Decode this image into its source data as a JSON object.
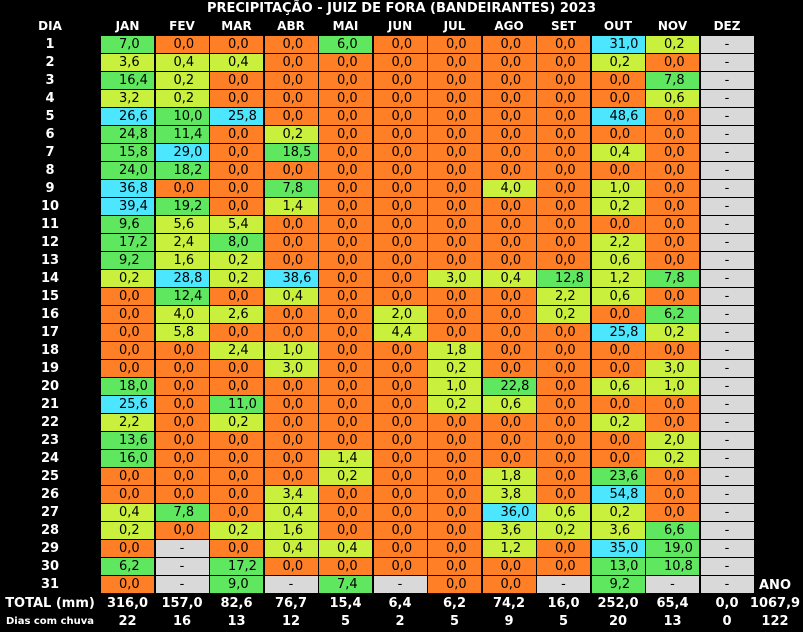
{
  "title": "PRECIPITAÇÃO - JUIZ DE FORA (BANDEIRANTES) 2023",
  "dia_label": "DIA",
  "months": [
    "JAN",
    "FEV",
    "MAR",
    "ABR",
    "MAI",
    "JUN",
    "JUL",
    "AGO",
    "SET",
    "OUT",
    "NOV",
    "DEZ"
  ],
  "colors": {
    "zero": "#ff7f27",
    "light": "#c8f03c",
    "moderate": "#5fe85f",
    "heavy": "#4de6ff",
    "nodata": "#d9d9d9"
  },
  "days": [
    [
      "7,0",
      "0,0",
      "0,0",
      "0,0",
      "6,0",
      "0,0",
      "0,0",
      "0,0",
      "0,0",
      "31,0",
      "0,2",
      "-"
    ],
    [
      "3,6",
      "0,4",
      "0,4",
      "0,0",
      "0,0",
      "0,0",
      "0,0",
      "0,0",
      "0,0",
      "0,2",
      "0,0",
      "-"
    ],
    [
      "16,4",
      "0,2",
      "0,0",
      "0,0",
      "0,0",
      "0,0",
      "0,0",
      "0,0",
      "0,0",
      "0,0",
      "7,8",
      "-"
    ],
    [
      "3,2",
      "0,2",
      "0,0",
      "0,0",
      "0,0",
      "0,0",
      "0,0",
      "0,0",
      "0,0",
      "0,0",
      "0,6",
      "-"
    ],
    [
      "26,6",
      "10,0",
      "25,8",
      "0,0",
      "0,0",
      "0,0",
      "0,0",
      "0,0",
      "0,0",
      "48,6",
      "0,0",
      "-"
    ],
    [
      "24,8",
      "11,4",
      "0,0",
      "0,2",
      "0,0",
      "0,0",
      "0,0",
      "0,0",
      "0,0",
      "0,0",
      "0,0",
      "-"
    ],
    [
      "15,8",
      "29,0",
      "0,0",
      "18,5",
      "0,0",
      "0,0",
      "0,0",
      "0,0",
      "0,0",
      "0,4",
      "0,0",
      "-"
    ],
    [
      "24,0",
      "18,2",
      "0,0",
      "0,0",
      "0,0",
      "0,0",
      "0,0",
      "0,0",
      "0,0",
      "0,0",
      "0,0",
      "-"
    ],
    [
      "36,8",
      "0,0",
      "0,0",
      "7,8",
      "0,0",
      "0,0",
      "0,0",
      "4,0",
      "0,0",
      "1,0",
      "0,0",
      "-"
    ],
    [
      "39,4",
      "19,2",
      "0,0",
      "1,4",
      "0,0",
      "0,0",
      "0,0",
      "0,0",
      "0,0",
      "0,2",
      "0,0",
      "-"
    ],
    [
      "9,6",
      "5,6",
      "5,4",
      "0,0",
      "0,0",
      "0,0",
      "0,0",
      "0,0",
      "0,0",
      "0,0",
      "0,0",
      "-"
    ],
    [
      "17,2",
      "2,4",
      "8,0",
      "0,0",
      "0,0",
      "0,0",
      "0,0",
      "0,0",
      "0,0",
      "2,2",
      "0,0",
      "-"
    ],
    [
      "9,2",
      "1,6",
      "0,2",
      "0,0",
      "0,0",
      "0,0",
      "0,0",
      "0,0",
      "0,0",
      "0,6",
      "0,0",
      "-"
    ],
    [
      "0,2",
      "28,8",
      "0,2",
      "38,6",
      "0,0",
      "0,0",
      "3,0",
      "0,4",
      "12,8",
      "1,2",
      "7,8",
      "-"
    ],
    [
      "0,0",
      "12,4",
      "0,0",
      "0,4",
      "0,0",
      "0,0",
      "0,0",
      "0,0",
      "2,2",
      "0,6",
      "0,0",
      "-"
    ],
    [
      "0,0",
      "4,0",
      "2,6",
      "0,0",
      "0,0",
      "2,0",
      "0,0",
      "0,0",
      "0,2",
      "0,0",
      "6,2",
      "-"
    ],
    [
      "0,0",
      "5,8",
      "0,0",
      "0,0",
      "0,0",
      "4,4",
      "0,0",
      "0,0",
      "0,0",
      "25,8",
      "0,2",
      "-"
    ],
    [
      "0,0",
      "0,0",
      "2,4",
      "1,0",
      "0,0",
      "0,0",
      "1,8",
      "0,0",
      "0,0",
      "0,0",
      "0,0",
      "-"
    ],
    [
      "0,0",
      "0,0",
      "0,0",
      "3,0",
      "0,0",
      "0,0",
      "0,2",
      "0,0",
      "0,0",
      "0,0",
      "3,0",
      "-"
    ],
    [
      "18,0",
      "0,0",
      "0,0",
      "0,0",
      "0,0",
      "0,0",
      "1,0",
      "22,8",
      "0,0",
      "0,6",
      "1,0",
      "-"
    ],
    [
      "25,6",
      "0,0",
      "11,0",
      "0,0",
      "0,0",
      "0,0",
      "0,2",
      "0,6",
      "0,0",
      "0,0",
      "0,0",
      "-"
    ],
    [
      "2,2",
      "0,0",
      "0,2",
      "0,0",
      "0,0",
      "0,0",
      "0,0",
      "0,0",
      "0,0",
      "0,2",
      "0,0",
      "-"
    ],
    [
      "13,6",
      "0,0",
      "0,0",
      "0,0",
      "0,0",
      "0,0",
      "0,0",
      "0,0",
      "0,0",
      "0,0",
      "2,0",
      "-"
    ],
    [
      "16,0",
      "0,0",
      "0,0",
      "0,0",
      "1,4",
      "0,0",
      "0,0",
      "0,0",
      "0,0",
      "0,0",
      "0,2",
      "-"
    ],
    [
      "0,0",
      "0,0",
      "0,0",
      "0,0",
      "0,2",
      "0,0",
      "0,0",
      "1,8",
      "0,0",
      "23,6",
      "0,0",
      "-"
    ],
    [
      "0,0",
      "0,0",
      "0,0",
      "3,4",
      "0,0",
      "0,0",
      "0,0",
      "3,8",
      "0,0",
      "54,8",
      "0,0",
      "-"
    ],
    [
      "0,4",
      "7,8",
      "0,0",
      "0,4",
      "0,0",
      "0,0",
      "0,0",
      "36,0",
      "0,6",
      "0,2",
      "0,0",
      "-"
    ],
    [
      "0,2",
      "0,0",
      "0,2",
      "1,6",
      "0,0",
      "0,0",
      "0,0",
      "3,6",
      "0,2",
      "3,6",
      "6,6",
      "-"
    ],
    [
      "0,0",
      "-",
      "0,0",
      "0,4",
      "0,4",
      "0,0",
      "0,0",
      "1,2",
      "0,0",
      "35,0",
      "19,0",
      "-"
    ],
    [
      "6,2",
      "-",
      "17,2",
      "0,0",
      "0,0",
      "0,0",
      "0,0",
      "0,0",
      "0,0",
      "13,0",
      "10,8",
      "-"
    ],
    [
      "0,0",
      "-",
      "9,0",
      "-",
      "7,4",
      "-",
      "0,0",
      "0,0",
      "-",
      "9,2",
      "-",
      "-"
    ]
  ],
  "ano_label": "ANO",
  "total_label": "TOTAL (mm)",
  "totals": [
    "316,0",
    "157,0",
    "82,6",
    "76,7",
    "15,4",
    "6,4",
    "6,2",
    "74,2",
    "16,0",
    "252,0",
    "65,4",
    "0,0"
  ],
  "total_ano": "1067,9",
  "rain_days_label": "Dias com chuva",
  "rain_days": [
    "22",
    "16",
    "13",
    "12",
    "5",
    "2",
    "5",
    "9",
    "5",
    "20",
    "13",
    "0"
  ],
  "rain_days_ano": "122"
}
